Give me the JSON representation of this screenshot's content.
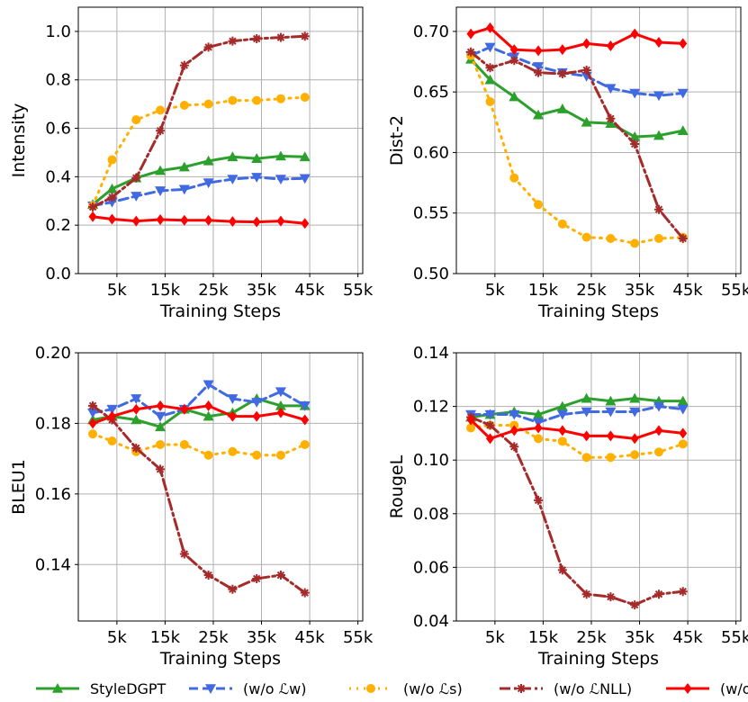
{
  "chart_data": [
    {
      "type": "line",
      "ylabel": "Intensity",
      "xlabel": "Training Steps",
      "ylim": [
        0.0,
        1.1
      ],
      "xlim": [
        -3,
        56
      ],
      "grid": true,
      "xticks": [
        5,
        15,
        25,
        35,
        45,
        55
      ],
      "xtick_labels": [
        "5k",
        "15k",
        "25k",
        "35k",
        "45k",
        "55k"
      ],
      "yticks": [
        0.0,
        0.2,
        0.4,
        0.6,
        0.8,
        1.0
      ],
      "ytick_labels": [
        "0.0",
        "0.2",
        "0.4",
        "0.6",
        "0.8",
        "1.0"
      ],
      "x": [
        0,
        4,
        9,
        14,
        19,
        24,
        29,
        34,
        39,
        44,
        49,
        54
      ],
      "series": [
        {
          "name": "StyleDGPT",
          "color": "#2ca02c",
          "values": [
            0.285,
            0.35,
            0.395,
            0.425,
            0.44,
            0.465,
            0.482,
            0.475,
            0.485,
            0.482,
            null,
            null
          ]
        },
        {
          "name": "w/o Lw",
          "color": "#4169e1",
          "values": [
            0.28,
            0.295,
            0.32,
            0.342,
            0.348,
            0.375,
            0.39,
            0.398,
            0.39,
            0.393,
            null,
            null
          ]
        },
        {
          "name": "w/o Ls",
          "color": "#ffb000",
          "values": [
            0.28,
            0.47,
            0.635,
            0.675,
            0.695,
            0.7,
            0.715,
            0.715,
            0.722,
            0.728,
            null,
            null
          ]
        },
        {
          "name": "w/o LNLL",
          "color": "#a52a2a",
          "values": [
            0.275,
            0.315,
            0.395,
            0.59,
            0.86,
            0.935,
            0.96,
            0.97,
            0.975,
            0.98,
            null,
            null
          ]
        },
        {
          "name": "w/o Lw & Ls",
          "color": "#ff0000",
          "values": [
            0.235,
            0.225,
            0.217,
            0.223,
            0.22,
            0.22,
            0.215,
            0.213,
            0.217,
            0.207,
            null,
            null
          ]
        }
      ]
    },
    {
      "type": "line",
      "ylabel": "Dist-2",
      "xlabel": "Training Steps",
      "ylim": [
        0.5,
        0.72
      ],
      "xlim": [
        -3,
        56
      ],
      "grid": true,
      "xticks": [
        5,
        15,
        25,
        35,
        45,
        55
      ],
      "xtick_labels": [
        "5k",
        "15k",
        "25k",
        "35k",
        "45k",
        "55k"
      ],
      "yticks": [
        0.5,
        0.55,
        0.6,
        0.65,
        0.7
      ],
      "ytick_labels": [
        "0.50",
        "0.55",
        "0.60",
        "0.65",
        "0.70"
      ],
      "x": [
        0,
        4,
        9,
        14,
        19,
        24,
        29,
        34,
        39,
        44,
        49,
        54
      ],
      "series": [
        {
          "name": "StyleDGPT",
          "color": "#2ca02c",
          "values": [
            0.677,
            0.66,
            0.646,
            0.631,
            0.636,
            0.625,
            0.624,
            0.613,
            0.614,
            0.618,
            null,
            null
          ]
        },
        {
          "name": "w/o Lw",
          "color": "#4169e1",
          "values": [
            0.68,
            0.687,
            0.679,
            0.671,
            0.666,
            0.663,
            0.653,
            0.649,
            0.647,
            0.649,
            null,
            null
          ]
        },
        {
          "name": "w/o Ls",
          "color": "#ffb000",
          "values": [
            0.68,
            0.642,
            0.579,
            0.557,
            0.541,
            0.53,
            0.529,
            0.525,
            0.529,
            0.53,
            null,
            null
          ]
        },
        {
          "name": "w/o LNLL",
          "color": "#a52a2a",
          "values": [
            0.683,
            0.67,
            0.676,
            0.666,
            0.665,
            0.668,
            0.628,
            0.607,
            0.553,
            0.529,
            null,
            null
          ]
        },
        {
          "name": "w/o Lw & Ls",
          "color": "#ff0000",
          "values": [
            0.698,
            0.703,
            0.685,
            0.684,
            0.685,
            0.69,
            0.688,
            0.698,
            0.691,
            0.69,
            null,
            null
          ]
        }
      ]
    },
    {
      "type": "line",
      "ylabel": "BLEU1",
      "xlabel": "Training Steps",
      "ylim": [
        0.124,
        0.2
      ],
      "xlim": [
        -3,
        56
      ],
      "grid": true,
      "xticks": [
        5,
        15,
        25,
        35,
        45,
        55
      ],
      "xtick_labels": [
        "5k",
        "15k",
        "25k",
        "35k",
        "45k",
        "55k"
      ],
      "yticks": [
        0.14,
        0.16,
        0.18,
        0.2
      ],
      "ytick_labels": [
        "0.14",
        "0.16",
        "0.18",
        "0.20"
      ],
      "x": [
        0,
        4,
        9,
        14,
        19,
        24,
        29,
        34,
        39,
        44,
        49,
        54
      ],
      "series": [
        {
          "name": "StyleDGPT",
          "color": "#2ca02c",
          "values": [
            0.181,
            0.182,
            0.181,
            0.179,
            0.184,
            0.182,
            0.183,
            0.187,
            0.185,
            0.185,
            null,
            null
          ]
        },
        {
          "name": "w/o Lw",
          "color": "#4169e1",
          "values": [
            0.183,
            0.184,
            0.187,
            0.182,
            0.184,
            0.191,
            0.187,
            0.186,
            0.189,
            0.185,
            null,
            null
          ]
        },
        {
          "name": "w/o Ls",
          "color": "#ffb000",
          "values": [
            0.177,
            0.175,
            0.172,
            0.174,
            0.174,
            0.171,
            0.172,
            0.171,
            0.171,
            0.174,
            null,
            null
          ]
        },
        {
          "name": "w/o LNLL",
          "color": "#a52a2a",
          "values": [
            0.185,
            0.181,
            0.173,
            0.167,
            0.143,
            0.137,
            0.133,
            0.136,
            0.137,
            0.132,
            null,
            null
          ]
        },
        {
          "name": "w/o Lw & Ls",
          "color": "#ff0000",
          "values": [
            0.18,
            0.182,
            0.184,
            0.185,
            0.184,
            0.185,
            0.182,
            0.182,
            0.183,
            0.181,
            null,
            null
          ]
        }
      ]
    },
    {
      "type": "line",
      "ylabel": "RougeL",
      "xlabel": "Training Steps",
      "ylim": [
        0.04,
        0.14
      ],
      "xlim": [
        -3,
        56
      ],
      "grid": true,
      "xticks": [
        5,
        15,
        25,
        35,
        45,
        55
      ],
      "xtick_labels": [
        "5k",
        "15k",
        "25k",
        "35k",
        "45k",
        "55k"
      ],
      "yticks": [
        0.04,
        0.06,
        0.08,
        0.1,
        0.12,
        0.14
      ],
      "ytick_labels": [
        "0.04",
        "0.06",
        "0.08",
        "0.10",
        "0.12",
        "0.14"
      ],
      "x": [
        0,
        4,
        9,
        14,
        19,
        24,
        29,
        34,
        39,
        44,
        49,
        54
      ],
      "series": [
        {
          "name": "StyleDGPT",
          "color": "#2ca02c",
          "values": [
            0.116,
            0.117,
            0.118,
            0.117,
            0.12,
            0.123,
            0.122,
            0.123,
            0.122,
            0.122,
            null,
            null
          ]
        },
        {
          "name": "w/o Lw",
          "color": "#4169e1",
          "values": [
            0.117,
            0.117,
            0.117,
            0.114,
            0.117,
            0.118,
            0.118,
            0.118,
            0.12,
            0.119,
            null,
            null
          ]
        },
        {
          "name": "w/o Ls",
          "color": "#ffb000",
          "values": [
            0.112,
            0.113,
            0.113,
            0.108,
            0.107,
            0.101,
            0.101,
            0.102,
            0.103,
            0.106,
            null,
            null
          ]
        },
        {
          "name": "w/o LNLL",
          "color": "#a52a2a",
          "values": [
            0.116,
            0.113,
            0.105,
            0.085,
            0.059,
            0.05,
            0.049,
            0.046,
            0.05,
            0.051,
            null,
            null
          ]
        },
        {
          "name": "w/o Lw & Ls",
          "color": "#ff0000",
          "values": [
            0.115,
            0.108,
            0.111,
            0.112,
            0.111,
            0.109,
            0.109,
            0.108,
            0.111,
            0.11,
            null,
            null
          ]
        }
      ]
    }
  ],
  "legend": {
    "entries": [
      {
        "label": "StyleDGPT",
        "color": "#2ca02c",
        "marker": "triangle-up",
        "dash": "solid"
      },
      {
        "label": "(w/o ℒw)",
        "color": "#4169e1",
        "marker": "triangle-down",
        "dash": "dashed"
      },
      {
        "label": "(w/o ℒs)",
        "color": "#ffb000",
        "marker": "circle",
        "dash": "dotted"
      },
      {
        "label": "(w/o ℒNLL)",
        "color": "#a52a2a",
        "marker": "star",
        "dash": "dashdot"
      },
      {
        "label": "(w/o ℒw & ℒs)",
        "color": "#ff0000",
        "marker": "diamond",
        "dash": "solid"
      }
    ]
  }
}
